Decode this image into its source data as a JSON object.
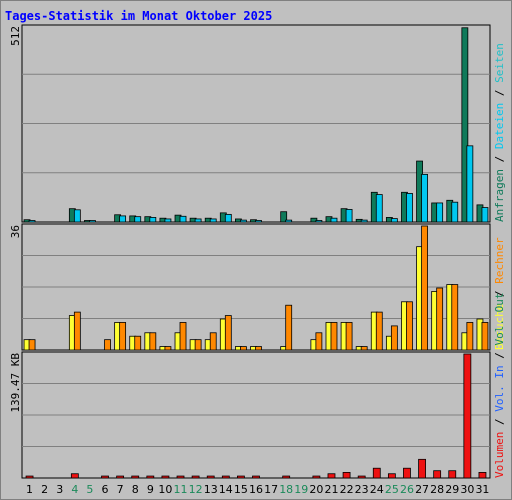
{
  "chart_data": {
    "type": "bar",
    "title": "Tages-Statistik im Monat Oktober 2025",
    "categories": [
      "1",
      "2",
      "3",
      "4",
      "5",
      "6",
      "7",
      "8",
      "9",
      "10",
      "11",
      "12",
      "13",
      "14",
      "15",
      "16",
      "17",
      "18",
      "19",
      "20",
      "21",
      "22",
      "23",
      "24",
      "25",
      "26",
      "27",
      "28",
      "29",
      "30",
      "31"
    ],
    "weekend_days": [
      "4",
      "5",
      "11",
      "12",
      "18",
      "19",
      "25",
      "26"
    ],
    "colors": {
      "weekday": "#000000",
      "weekend": "#1b8a5a",
      "anfragen": "#0f7a5a",
      "dateien": "#00c8f0",
      "seiten": "#20c0c8",
      "besuche": "#ffff33",
      "rechner": "#ff8800",
      "vol_out": "#1b8a5a",
      "vol_in": "#2060ff",
      "volumen": "#ee1111",
      "separator": "#000000"
    },
    "panels": [
      {
        "max_label": "512",
        "ymax": 512,
        "legend_order": [
          "Anfragen",
          "Dateien",
          "Seiten"
        ],
        "series": [
          {
            "name": "Anfragen",
            "color_key": "anfragen",
            "values": [
              6,
              0,
              0,
              35,
              3,
              0,
              19,
              16,
              14,
              10,
              18,
              10,
              10,
              24,
              8,
              6,
              0,
              27,
              0,
              10,
              14,
              35,
              7,
              78,
              12,
              78,
              160,
              50,
              57,
              510,
              45
            ]
          },
          {
            "name": "Dateien",
            "color_key": "dateien",
            "values": [
              2,
              0,
              0,
              32,
              2,
              0,
              16,
              14,
              12,
              8,
              15,
              8,
              8,
              20,
              5,
              4,
              0,
              5,
              0,
              4,
              10,
              33,
              5,
              72,
              9,
              75,
              125,
              50,
              52,
              200,
              38
            ]
          }
        ]
      },
      {
        "max_label": "36",
        "ymax": 36,
        "legend_order": [
          "Besuche",
          "Rechner"
        ],
        "series": [
          {
            "name": "Besuche",
            "color_key": "besuche",
            "values": [
              3,
              0,
              0,
              10,
              0,
              0,
              8,
              4,
              5,
              1,
              5,
              3,
              3,
              9,
              1,
              1,
              0,
              1,
              0,
              3,
              8,
              8,
              1,
              11,
              4,
              14,
              30,
              17,
              19,
              5,
              9
            ]
          },
          {
            "name": "Rechner",
            "color_key": "rechner",
            "values": [
              3,
              0,
              0,
              11,
              0,
              3,
              8,
              4,
              5,
              1,
              8,
              3,
              5,
              10,
              1,
              1,
              0,
              13,
              0,
              5,
              8,
              8,
              1,
              11,
              7,
              14,
              36,
              18,
              19,
              8,
              8
            ]
          }
        ]
      },
      {
        "max_label": "139.47 KB",
        "ymax": 139.47,
        "legend_order": [
          "Volumen",
          "Vol. In",
          "Vol. Out"
        ],
        "series": [
          {
            "name": "Volumen",
            "color_key": "volumen",
            "values": [
              2.2,
              0,
              0,
              4.8,
              0,
              2.2,
              2.2,
              2.2,
              2.2,
              2.2,
              2.2,
              2.2,
              2.2,
              2.2,
              2.2,
              2.2,
              0,
              2.2,
              0,
              2.2,
              4.8,
              6.3,
              2.2,
              11,
              4.8,
              11,
              21,
              8.2,
              8.2,
              139.47,
              6.3
            ]
          }
        ]
      }
    ]
  }
}
